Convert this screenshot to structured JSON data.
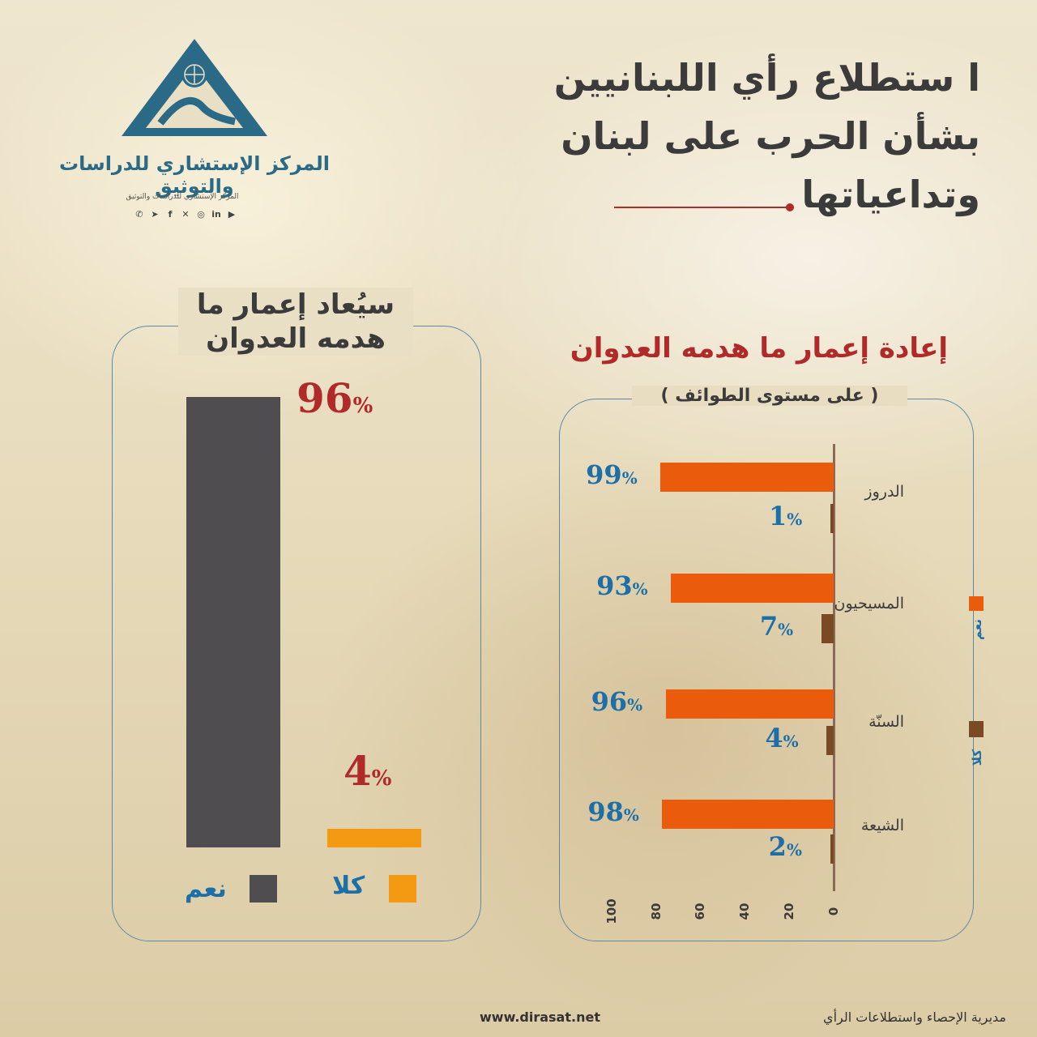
{
  "header": {
    "title_lines": [
      "ا ستطلاع رأي اللبنانيين",
      "بشأن الحرب على لبنان",
      "وتداعياتها"
    ]
  },
  "logo": {
    "name": "المركز الإستشاري للدراسات والتوثيق",
    "subtitle": "المركز الإستشاري للدراسات والتوثيق",
    "social_icons": [
      "whatsapp-icon",
      "telegram-icon",
      "facebook-icon",
      "x-icon",
      "instagram-icon",
      "linkedin-icon",
      "youtube-icon"
    ]
  },
  "left_panel": {
    "title_lines": [
      "سيُعاد إعمار ما",
      "هدمه العدوان"
    ],
    "legend": [
      {
        "label": "نعم",
        "color": "#4f4d4f"
      },
      {
        "label": "كلا",
        "color": "#f39a12"
      }
    ]
  },
  "right_panel": {
    "title": "إعادة إعمار ما هدمه العدوان",
    "subtitle": "( على مستوى الطوائف )",
    "legend": [
      {
        "label": "نعم",
        "color": "#ea5b0c"
      },
      {
        "label": "كلا",
        "color": "#7a4a25"
      }
    ],
    "axis_ticks": [
      "0",
      "20",
      "40",
      "60",
      "80",
      "100"
    ]
  },
  "chart_data": [
    {
      "type": "bar",
      "title": "سيُعاد إعمار ما هدمه العدوان",
      "categories": [
        "نعم",
        "كلا"
      ],
      "values": [
        96,
        4
      ],
      "value_labels": [
        "96%",
        "4%"
      ],
      "colors": [
        "#4f4d4f",
        "#f39a12"
      ],
      "ylim": [
        0,
        100
      ],
      "legend": "bottom"
    },
    {
      "type": "bar",
      "orientation": "horizontal",
      "title": "إعادة إعمار ما هدمه العدوان",
      "subtitle": "( على مستوى الطوائف )",
      "categories": [
        "الدروز",
        "المسيحيون",
        "السنّة",
        "الشيعة"
      ],
      "series": [
        {
          "name": "نعم",
          "values": [
            99,
            93,
            96,
            98
          ],
          "labels": [
            "99%",
            "93%",
            "96%",
            "98%"
          ],
          "color": "#ea5b0c"
        },
        {
          "name": "كلا",
          "values": [
            1,
            7,
            4,
            2
          ],
          "labels": [
            "1%",
            "7%",
            "4%",
            "2%"
          ],
          "color": "#7a4a25"
        }
      ],
      "xlim": [
        0,
        100
      ],
      "x_ticks": [
        0,
        20,
        40,
        60,
        80,
        100
      ],
      "legend": "right"
    }
  ],
  "footer": {
    "website": "www.dirasat.net",
    "department": "مديرية الإحصاء واستطلاعات الرأي"
  }
}
